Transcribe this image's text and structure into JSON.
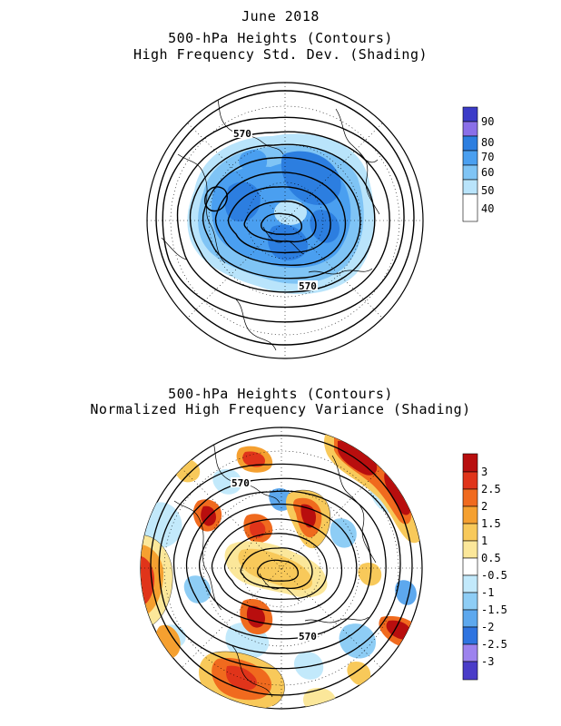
{
  "panel1": {
    "title_line1": "June 2018",
    "title_line2": "500-hPa Heights (Contours)",
    "title_line3": "High Frequency Std. Dev. (Shading)",
    "contour_labels": [
      "570",
      "570"
    ],
    "colorbar": {
      "labels": [
        "90",
        "80",
        "70",
        "60",
        "50",
        "40"
      ],
      "colors": [
        "#3b3bc8",
        "#8a6fe8",
        "#2c7ee0",
        "#4a9ff0",
        "#7fc4f5",
        "#b9e4fb",
        "#ffffff"
      ]
    }
  },
  "panel2": {
    "title_line1": "500-hPa Heights (Contours)",
    "title_line2": "Normalized High Frequency Variance (Shading)",
    "contour_labels": [
      "570",
      "570"
    ],
    "colorbar": {
      "labels": [
        "3",
        "2.5",
        "2",
        "1.5",
        "1",
        "0.5",
        "-0.5",
        "-1",
        "-1.5",
        "-2",
        "-2.5",
        "-3"
      ],
      "colors": [
        "#b80e0e",
        "#e0341a",
        "#f06a1e",
        "#f5a030",
        "#f8c95a",
        "#fbe79a",
        "#ffffff",
        "#c2e9fb",
        "#8ecdf5",
        "#5da8ee",
        "#2f74e0",
        "#9d83ee",
        "#4a3cc8"
      ]
    }
  }
}
